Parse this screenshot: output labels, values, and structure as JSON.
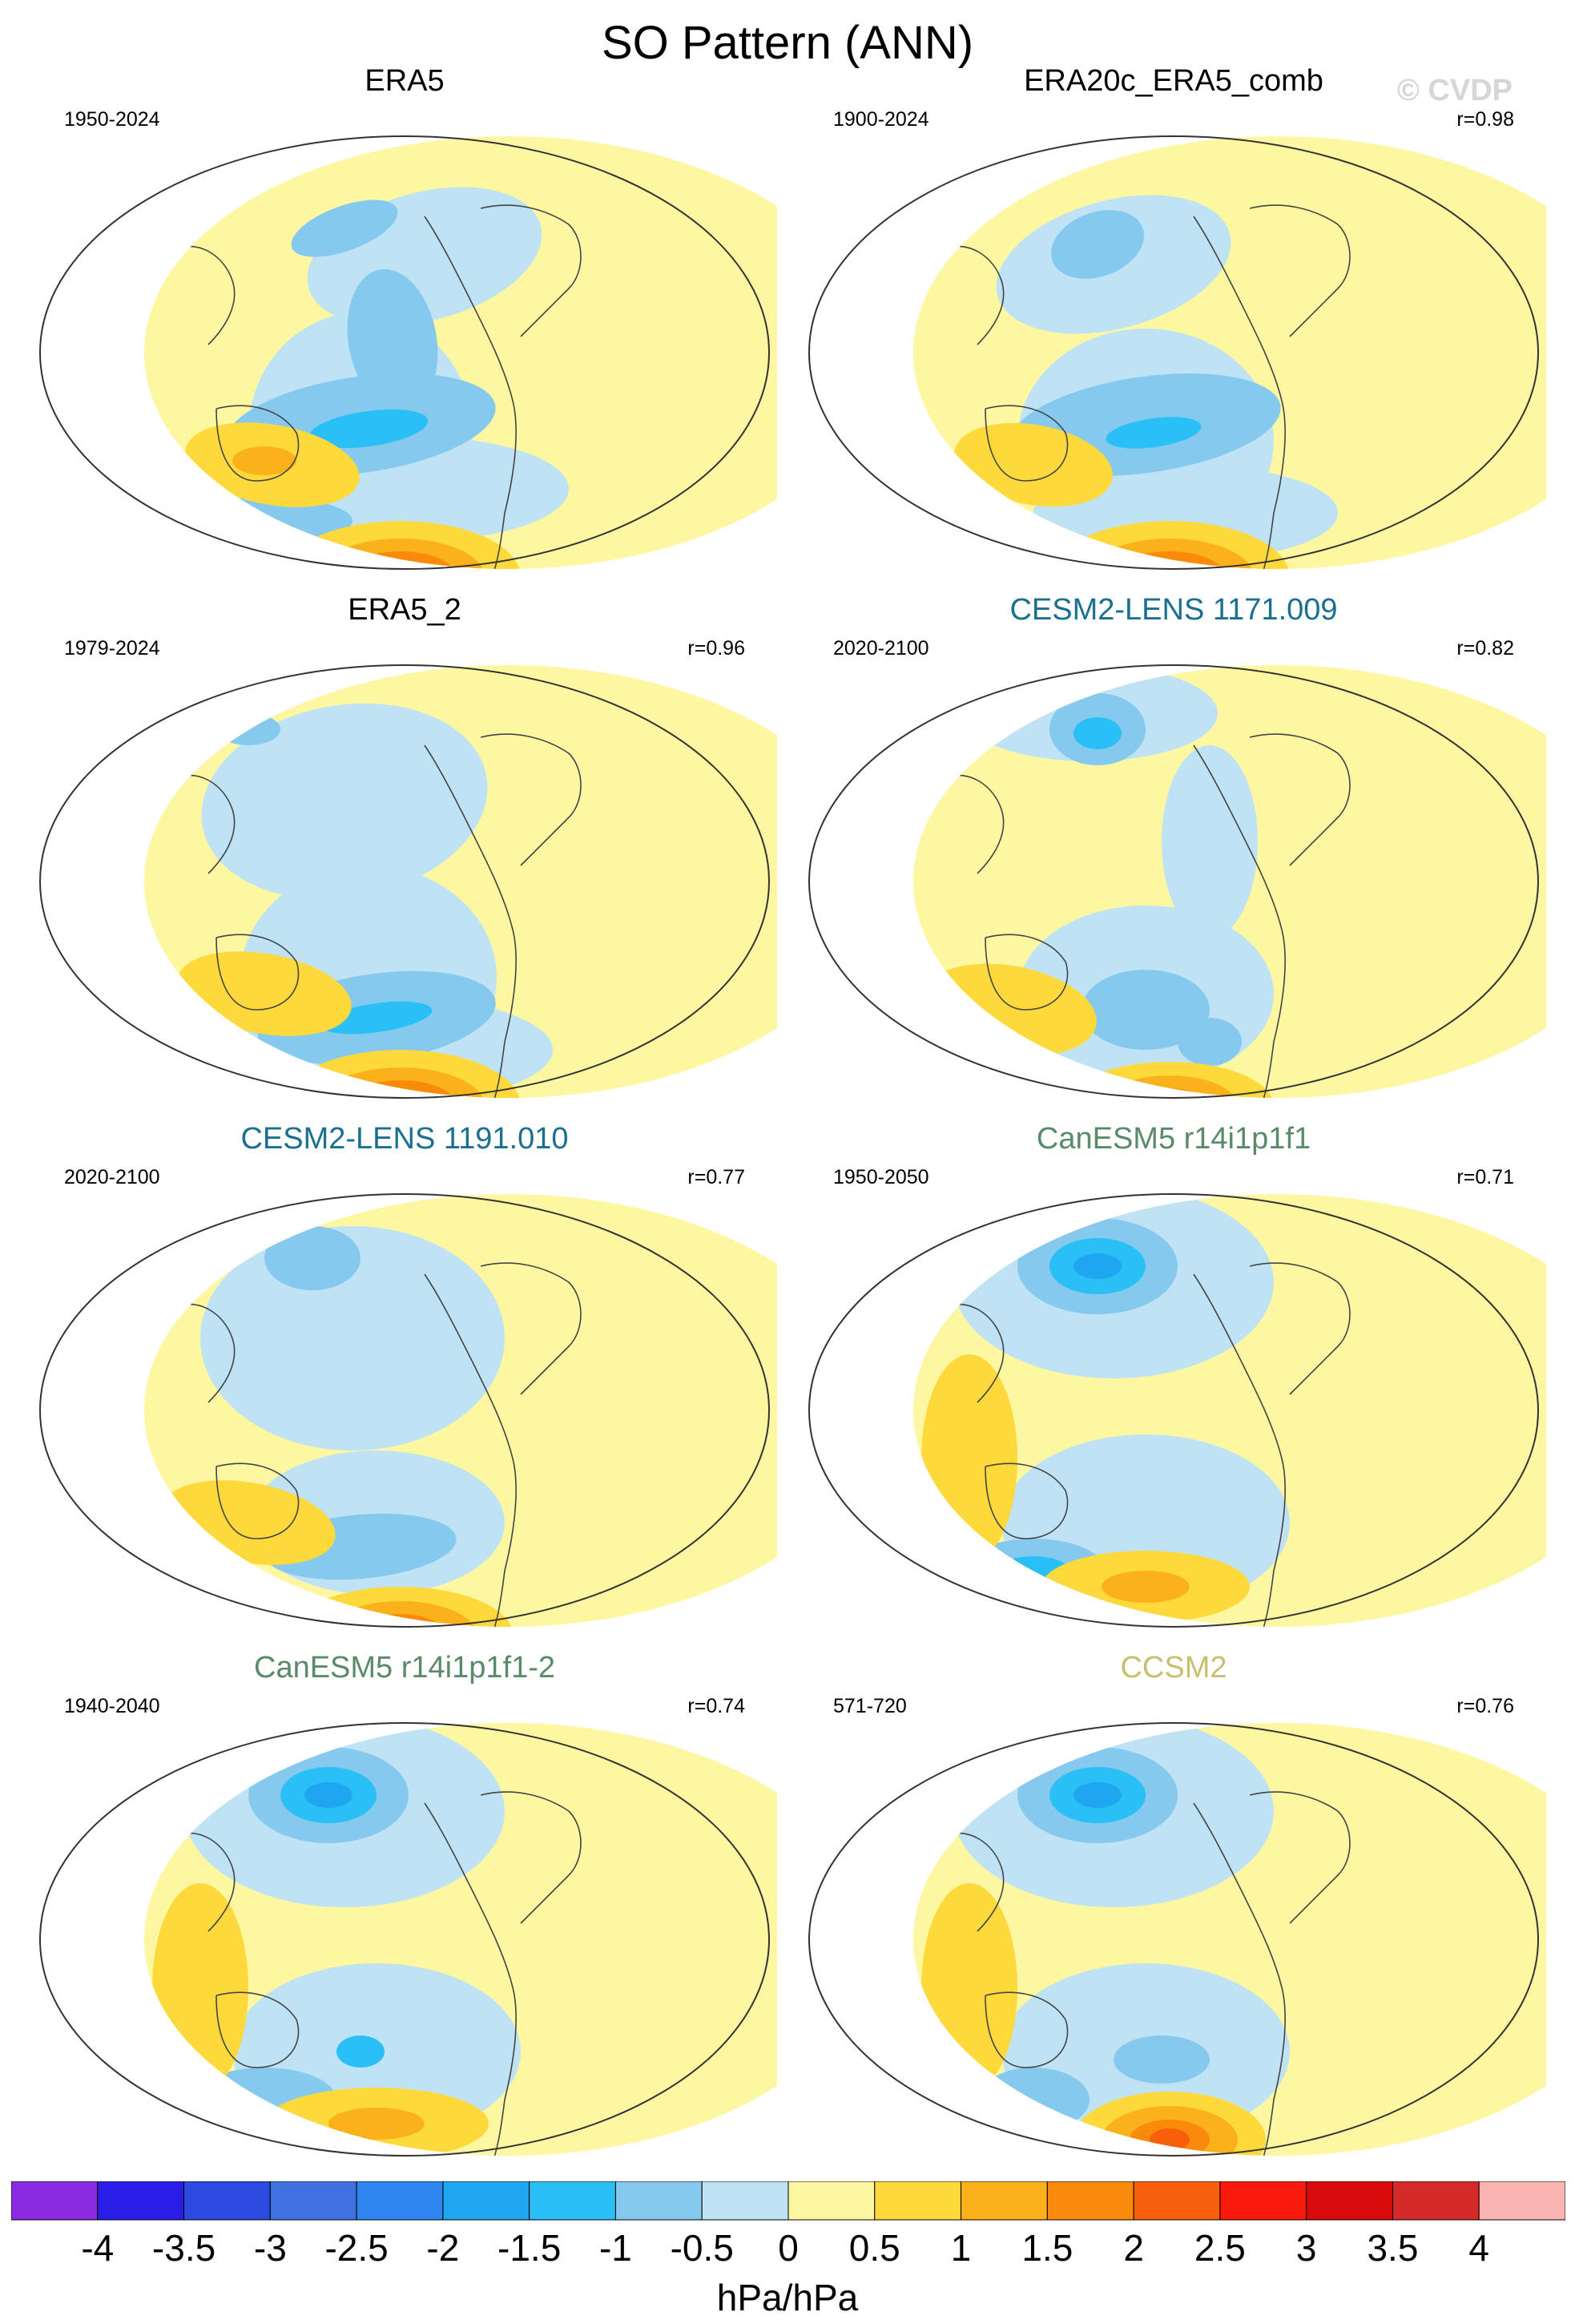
{
  "title": "SO Pattern (ANN)",
  "watermark": "© CVDP",
  "colors": {
    "title_obs": "#000000",
    "cesm2": "#1b6f8f",
    "canesm5": "#5a8a6a",
    "ccsm2": "#c8c070",
    "land": "#444444",
    "map_border": "#333333"
  },
  "chart_data": {
    "type": "heatmap",
    "description_units": "hPa/hPa",
    "panels": [
      {
        "title": "ERA5",
        "years": "1950-2024",
        "r": "",
        "title_color": "title_obs"
      },
      {
        "title": "ERA20c_ERA5_comb",
        "years": "1900-2024",
        "r": "r=0.98",
        "title_color": "title_obs"
      },
      {
        "title": "ERA5_2",
        "years": "1979-2024",
        "r": "r=0.96",
        "title_color": "title_obs"
      },
      {
        "title": "CESM2-LENS 1171.009",
        "years": "2020-2100",
        "r": "r=0.82",
        "title_color": "cesm2"
      },
      {
        "title": "CESM2-LENS 1191.010",
        "years": "2020-2100",
        "r": "r=0.77",
        "title_color": "cesm2"
      },
      {
        "title": "CanESM5 r14i1p1f1",
        "years": "1950-2050",
        "r": "r=0.71",
        "title_color": "canesm5"
      },
      {
        "title": "CanESM5 r14i1p1f1-2",
        "years": "1940-2040",
        "r": "r=0.74",
        "title_color": "canesm5"
      },
      {
        "title": "CCSM2",
        "years": "571-720",
        "r": "r=0.76",
        "title_color": "ccsm2"
      }
    ],
    "colorbar": {
      "units": "hPa/hPa",
      "labels": [
        "-4",
        "-3.5",
        "-3",
        "-2.5",
        "-2",
        "-1.5",
        "-1",
        "-0.5",
        "0",
        "0.5",
        "1",
        "1.5",
        "2",
        "2.5",
        "3",
        "3.5",
        "4"
      ],
      "colors": [
        "#8a2be2",
        "#2a1de8",
        "#2a4ae0",
        "#3f72e0",
        "#2f86ee",
        "#1ea6f0",
        "#2bc0f5",
        "#86c9ee",
        "#bfe3f4",
        "#fdf7a2",
        "#fdd93c",
        "#fbb21a",
        "#f98a0c",
        "#f85f0a",
        "#f71a0d",
        "#d80a0c",
        "#d42a2a",
        "#fbb4b4"
      ]
    }
  }
}
